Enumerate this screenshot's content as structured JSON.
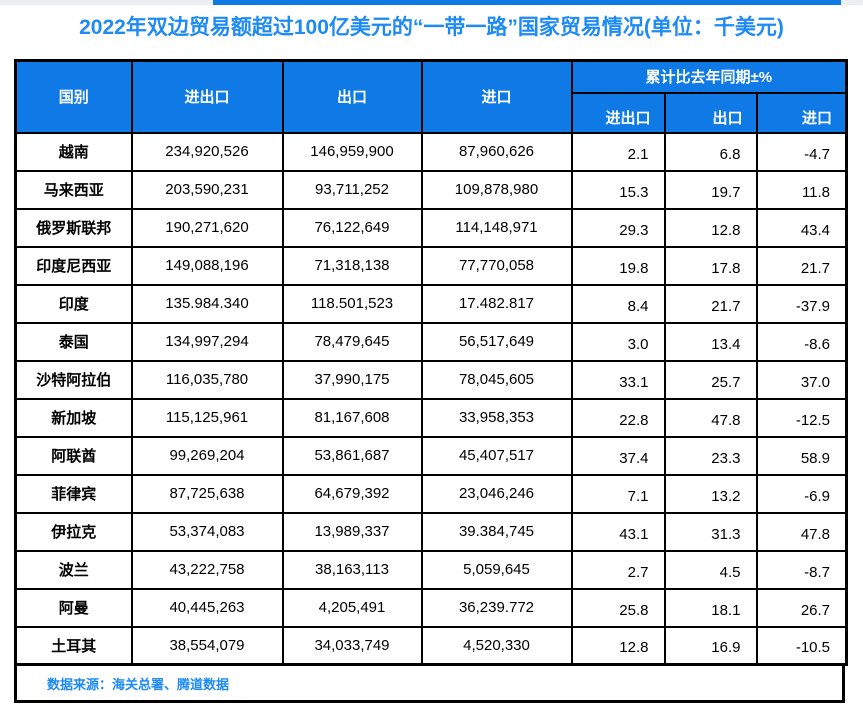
{
  "title": "2022年双边贸易额超过100亿美元的“一带一路”国家贸易情况(单位：千美元)",
  "colors": {
    "header_bg": "#0f7ae5",
    "title_text": "#1d8af5",
    "footer_text": "#1d8af5",
    "border": "#000000",
    "scrollbar_thumb": "#0f7ae5",
    "scrollbar_track": "#eceef1"
  },
  "table": {
    "headers": {
      "country": "国别",
      "total": "进出口",
      "export": "出口",
      "import": "进口",
      "yoy_group": "累计比去年同期±%",
      "yoy_total": "进出口",
      "yoy_export": "出口",
      "yoy_import": "进口"
    },
    "rows": [
      {
        "country": "越南",
        "total": "234,920,526",
        "export": "146,959,900",
        "import": "87,960,626",
        "yoy_total": "2.1",
        "yoy_export": "6.8",
        "yoy_import": "-4.7"
      },
      {
        "country": "马来西亚",
        "total": "203,590,231",
        "export": "93,711,252",
        "import": "109,878,980",
        "yoy_total": "15.3",
        "yoy_export": "19.7",
        "yoy_import": "11.8"
      },
      {
        "country": "俄罗斯联邦",
        "total": "190,271,620",
        "export": "76,122,649",
        "import": "114,148,971",
        "yoy_total": "29.3",
        "yoy_export": "12.8",
        "yoy_import": "43.4"
      },
      {
        "country": "印度尼西亚",
        "total": "149,088,196",
        "export": "71,318,138",
        "import": "77,770,058",
        "yoy_total": "19.8",
        "yoy_export": "17.8",
        "yoy_import": "21.7"
      },
      {
        "country": "印度",
        "total": "135.984.340",
        "export": "118.501,523",
        "import": "17.482.817",
        "yoy_total": "8.4",
        "yoy_export": "21.7",
        "yoy_import": "-37.9"
      },
      {
        "country": "泰国",
        "total": "134,997,294",
        "export": "78,479,645",
        "import": "56,517,649",
        "yoy_total": "3.0",
        "yoy_export": "13.4",
        "yoy_import": "-8.6"
      },
      {
        "country": "沙特阿拉伯",
        "total": "116,035,780",
        "export": "37,990,175",
        "import": "78,045,605",
        "yoy_total": "33.1",
        "yoy_export": "25.7",
        "yoy_import": "37.0"
      },
      {
        "country": "新加坡",
        "total": "115,125,961",
        "export": "81,167,608",
        "import": "33,958,353",
        "yoy_total": "22.8",
        "yoy_export": "47.8",
        "yoy_import": "-12.5"
      },
      {
        "country": "阿联酋",
        "total": "99,269,204",
        "export": "53,861,687",
        "import": "45,407,517",
        "yoy_total": "37.4",
        "yoy_export": "23.3",
        "yoy_import": "58.9"
      },
      {
        "country": "菲律宾",
        "total": "87,725,638",
        "export": "64,679,392",
        "import": "23,046,246",
        "yoy_total": "7.1",
        "yoy_export": "13.2",
        "yoy_import": "-6.9"
      },
      {
        "country": "伊拉克",
        "total": "53,374,083",
        "export": "13,989,337",
        "import": "39.384,745",
        "yoy_total": "43.1",
        "yoy_export": "31.3",
        "yoy_import": "47.8"
      },
      {
        "country": "波兰",
        "total": "43,222,758",
        "export": "38,163,113",
        "import": "5,059,645",
        "yoy_total": "2.7",
        "yoy_export": "4.5",
        "yoy_import": "-8.7"
      },
      {
        "country": "阿曼",
        "total": "40,445,263",
        "export": "4,205,491",
        "import": "36,239.772",
        "yoy_total": "25.8",
        "yoy_export": "18.1",
        "yoy_import": "26.7"
      },
      {
        "country": "土耳其",
        "total": "38,554,079",
        "export": "34,033,749",
        "import": "4,520,330",
        "yoy_total": "12.8",
        "yoy_export": "16.9",
        "yoy_import": "-10.5"
      }
    ],
    "footer": "数据来源：海关总署、腾道数据"
  },
  "chart_data": {
    "type": "table",
    "title": "2022年双边贸易额超过100亿美元的“一带一路”国家贸易情况(单位：千美元)",
    "columns": [
      "国别",
      "进出口",
      "出口",
      "进口",
      "累计比去年同期±% 进出口",
      "累计比去年同期±% 出口",
      "累计比去年同期±% 进口"
    ],
    "rows": [
      [
        "越南",
        "234,920,526",
        "146,959,900",
        "87,960,626",
        "2.1",
        "6.8",
        "-4.7"
      ],
      [
        "马来西亚",
        "203,590,231",
        "93,711,252",
        "109,878,980",
        "15.3",
        "19.7",
        "11.8"
      ],
      [
        "俄罗斯联邦",
        "190,271,620",
        "76,122,649",
        "114,148,971",
        "29.3",
        "12.8",
        "43.4"
      ],
      [
        "印度尼西亚",
        "149,088,196",
        "71,318,138",
        "77,770,058",
        "19.8",
        "17.8",
        "21.7"
      ],
      [
        "印度",
        "135.984.340",
        "118.501,523",
        "17.482.817",
        "8.4",
        "21.7",
        "-37.9"
      ],
      [
        "泰国",
        "134,997,294",
        "78,479,645",
        "56,517,649",
        "3.0",
        "13.4",
        "-8.6"
      ],
      [
        "沙特阿拉伯",
        "116,035,780",
        "37,990,175",
        "78,045,605",
        "33.1",
        "25.7",
        "37.0"
      ],
      [
        "新加坡",
        "115,125,961",
        "81,167,608",
        "33,958,353",
        "22.8",
        "47.8",
        "-12.5"
      ],
      [
        "阿联酋",
        "99,269,204",
        "53,861,687",
        "45,407,517",
        "37.4",
        "23.3",
        "58.9"
      ],
      [
        "菲律宾",
        "87,725,638",
        "64,679,392",
        "23,046,246",
        "7.1",
        "13.2",
        "-6.9"
      ],
      [
        "伊拉克",
        "53,374,083",
        "13,989,337",
        "39.384,745",
        "43.1",
        "31.3",
        "47.8"
      ],
      [
        "波兰",
        "43,222,758",
        "38,163,113",
        "5,059,645",
        "2.7",
        "4.5",
        "-8.7"
      ],
      [
        "阿曼",
        "40,445,263",
        "4,205,491",
        "36,239.772",
        "25.8",
        "18.1",
        "26.7"
      ],
      [
        "土耳其",
        "38,554,079",
        "34,033,749",
        "4,520,330",
        "12.8",
        "16.9",
        "-10.5"
      ]
    ],
    "source_note": "数据来源：海关总署、腾道数据"
  }
}
